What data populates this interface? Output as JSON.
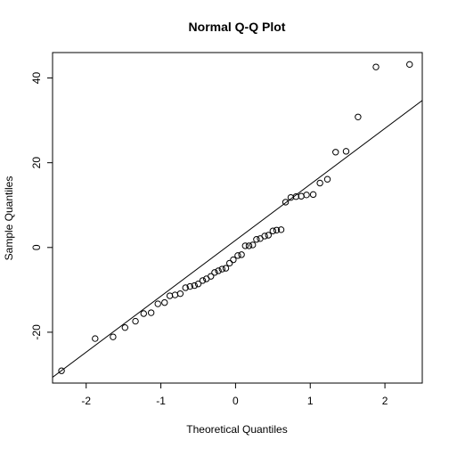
{
  "chart_data": {
    "type": "scatter",
    "title": "Normal Q-Q Plot",
    "xlabel": "Theoretical Quantiles",
    "ylabel": "Sample Quantiles",
    "xlim": [
      -2.45,
      2.5
    ],
    "ylim": [
      -32,
      46
    ],
    "xticks": [
      -2,
      -1,
      0,
      1,
      2
    ],
    "xtick_labels": [
      "-2",
      "-1",
      "0",
      "1",
      "2"
    ],
    "yticks": [
      -20,
      0,
      20,
      40
    ],
    "ytick_labels": [
      "-20",
      "0",
      "20",
      "40"
    ],
    "grid": false,
    "points": [
      {
        "x": -2.33,
        "y": -29.1
      },
      {
        "x": -1.88,
        "y": -21.5
      },
      {
        "x": -1.64,
        "y": -21.1
      },
      {
        "x": -1.48,
        "y": -18.9
      },
      {
        "x": -1.34,
        "y": -17.4
      },
      {
        "x": -1.23,
        "y": -15.6
      },
      {
        "x": -1.13,
        "y": -15.4
      },
      {
        "x": -1.04,
        "y": -13.3
      },
      {
        "x": -0.95,
        "y": -13.0
      },
      {
        "x": -0.88,
        "y": -11.4
      },
      {
        "x": -0.81,
        "y": -11.2
      },
      {
        "x": -0.74,
        "y": -10.9
      },
      {
        "x": -0.67,
        "y": -9.5
      },
      {
        "x": -0.61,
        "y": -9.2
      },
      {
        "x": -0.55,
        "y": -9.0
      },
      {
        "x": -0.5,
        "y": -8.6
      },
      {
        "x": -0.44,
        "y": -7.8
      },
      {
        "x": -0.39,
        "y": -7.4
      },
      {
        "x": -0.33,
        "y": -6.8
      },
      {
        "x": -0.28,
        "y": -5.9
      },
      {
        "x": -0.23,
        "y": -5.5
      },
      {
        "x": -0.18,
        "y": -5.1
      },
      {
        "x": -0.13,
        "y": -4.9
      },
      {
        "x": -0.08,
        "y": -3.7
      },
      {
        "x": -0.03,
        "y": -2.9
      },
      {
        "x": 0.03,
        "y": -1.9
      },
      {
        "x": 0.08,
        "y": -1.7
      },
      {
        "x": 0.13,
        "y": 0.4
      },
      {
        "x": 0.18,
        "y": 0.4
      },
      {
        "x": 0.23,
        "y": 0.6
      },
      {
        "x": 0.28,
        "y": 1.9
      },
      {
        "x": 0.33,
        "y": 2.1
      },
      {
        "x": 0.39,
        "y": 2.7
      },
      {
        "x": 0.44,
        "y": 2.9
      },
      {
        "x": 0.5,
        "y": 3.9
      },
      {
        "x": 0.55,
        "y": 4.1
      },
      {
        "x": 0.61,
        "y": 4.2
      },
      {
        "x": 0.67,
        "y": 10.7
      },
      {
        "x": 0.74,
        "y": 11.8
      },
      {
        "x": 0.81,
        "y": 12.0
      },
      {
        "x": 0.88,
        "y": 12.1
      },
      {
        "x": 0.95,
        "y": 12.4
      },
      {
        "x": 1.04,
        "y": 12.5
      },
      {
        "x": 1.13,
        "y": 15.2
      },
      {
        "x": 1.23,
        "y": 16.1
      },
      {
        "x": 1.34,
        "y": 22.5
      },
      {
        "x": 1.48,
        "y": 22.7
      },
      {
        "x": 1.64,
        "y": 30.8
      },
      {
        "x": 1.88,
        "y": 42.6
      },
      {
        "x": 2.33,
        "y": 43.2
      }
    ],
    "reference_line": {
      "intercept": 1.7,
      "slope": 13.2
    },
    "colors": {
      "points": "#000000",
      "line": "#000000",
      "axes": "#000000",
      "background": "#ffffff"
    }
  }
}
